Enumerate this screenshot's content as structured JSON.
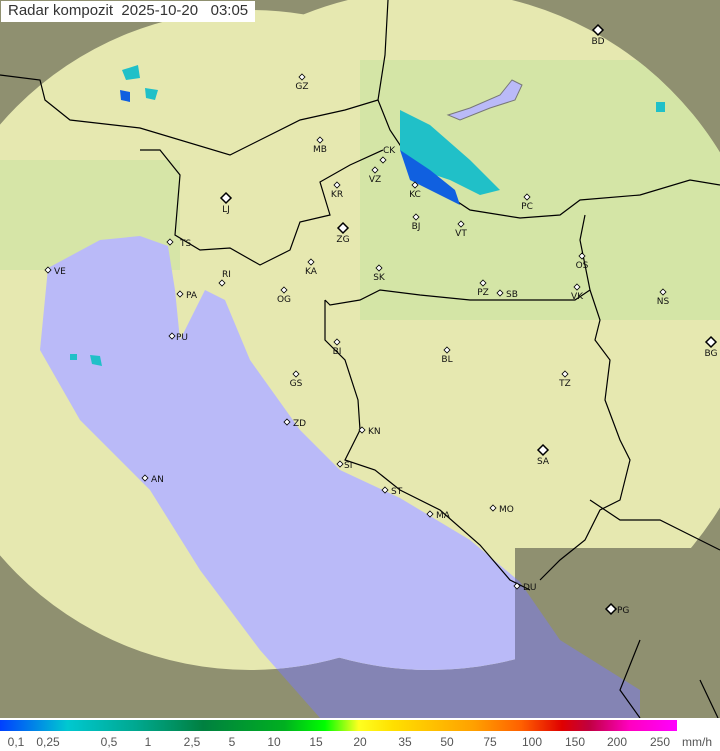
{
  "title": "Radar kompozit  2025-10-20   03:05",
  "colors": {
    "land_inside": "#e6e8b0",
    "land_outside": "#8f9070",
    "sea_inside": "#babaf8",
    "sea_outside": "#8484b4",
    "border": "#000000",
    "echo_light": "#20c0c8",
    "echo_dark": "#1060e0"
  },
  "cities": [
    {
      "code": "BD",
      "major": true
    },
    {
      "code": "GZ"
    },
    {
      "code": "MB"
    },
    {
      "code": "CK"
    },
    {
      "code": "VZ"
    },
    {
      "code": "KR"
    },
    {
      "code": "KC"
    },
    {
      "code": "PC"
    },
    {
      "code": "LJ",
      "major": true
    },
    {
      "code": "BJ"
    },
    {
      "code": "VT"
    },
    {
      "code": "ZG",
      "major": true
    },
    {
      "code": "TS"
    },
    {
      "code": "VE"
    },
    {
      "code": "KA"
    },
    {
      "code": "SK"
    },
    {
      "code": "OS"
    },
    {
      "code": "RI"
    },
    {
      "code": "PA"
    },
    {
      "code": "OG"
    },
    {
      "code": "PZ"
    },
    {
      "code": "SB"
    },
    {
      "code": "VK"
    },
    {
      "code": "NS"
    },
    {
      "code": "PU"
    },
    {
      "code": "BG",
      "major": true
    },
    {
      "code": "BI"
    },
    {
      "code": "BL"
    },
    {
      "code": "GS"
    },
    {
      "code": "TZ"
    },
    {
      "code": "ZD"
    },
    {
      "code": "KN"
    },
    {
      "code": "SA",
      "major": true
    },
    {
      "code": "SI"
    },
    {
      "code": "AN"
    },
    {
      "code": "ST"
    },
    {
      "code": "MA"
    },
    {
      "code": "MO"
    },
    {
      "code": "DU"
    },
    {
      "code": "PG",
      "major": true
    }
  ],
  "legend": {
    "labels": [
      "0,1",
      "0,25",
      "0,5",
      "1",
      "2,5",
      "5",
      "10",
      "15",
      "20",
      "35",
      "50",
      "75",
      "100",
      "150",
      "200",
      "250"
    ],
    "unit": "mm/h"
  }
}
